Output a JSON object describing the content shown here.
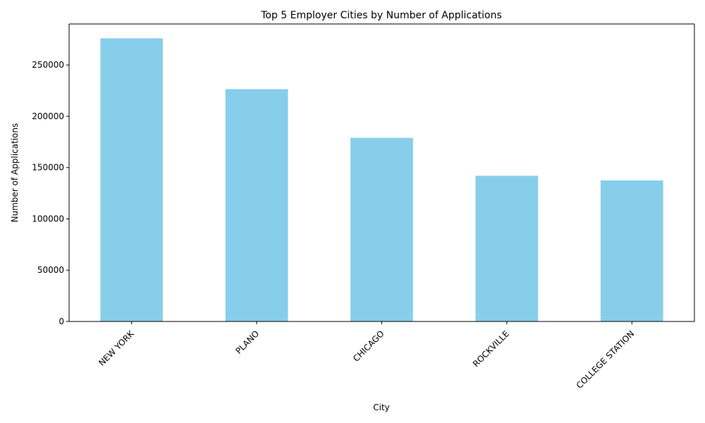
{
  "chart_data": {
    "type": "bar",
    "title": "Top 5 Employer Cities by Number of Applications",
    "xlabel": "City",
    "ylabel": "Number of Applications",
    "categories": [
      "NEW YORK",
      "PLANO",
      "CHICAGO",
      "ROCKVILLE",
      "COLLEGE STATION"
    ],
    "values": [
      276000,
      226500,
      179000,
      142000,
      137500
    ],
    "ylim": [
      0,
      290000
    ],
    "yticks": [
      0,
      50000,
      100000,
      150000,
      200000,
      250000
    ],
    "ytick_labels": [
      "0",
      "50000",
      "100000",
      "150000",
      "200000",
      "250000"
    ],
    "grid": false,
    "legend": "none",
    "colors": {
      "bar": "#87ceeb",
      "axis": "#000000"
    }
  }
}
